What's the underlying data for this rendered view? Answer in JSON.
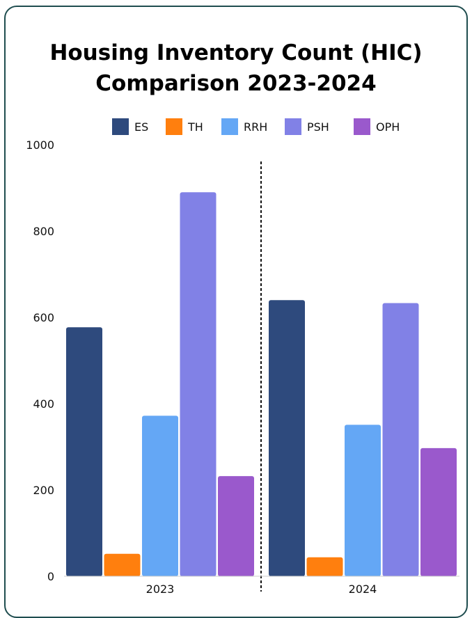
{
  "chart_data": {
    "type": "bar",
    "title_line1": "Housing Inventory Count (HIC)",
    "title_line2": "Comparison 2023-2024",
    "categories": [
      "2023",
      "2024"
    ],
    "series": [
      {
        "name": "ES",
        "color": "#2e4a7d",
        "values": [
          577,
          640
        ]
      },
      {
        "name": "TH",
        "color": "#ff7f0e",
        "values": [
          52,
          44
        ]
      },
      {
        "name": "RRH",
        "color": "#64a7f5",
        "values": [
          372,
          351
        ]
      },
      {
        "name": "PSH",
        "color": "#8181e6",
        "values": [
          890,
          633
        ]
      },
      {
        "name": "OPH",
        "color": "#9a59cc",
        "values": [
          232,
          297
        ]
      }
    ],
    "ylim": [
      0,
      1000
    ],
    "yticks": [
      "0",
      "200",
      "400",
      "600",
      "800",
      "1000"
    ],
    "legend_position": "top",
    "grid": false,
    "separator": "dashed vertical line between years"
  }
}
